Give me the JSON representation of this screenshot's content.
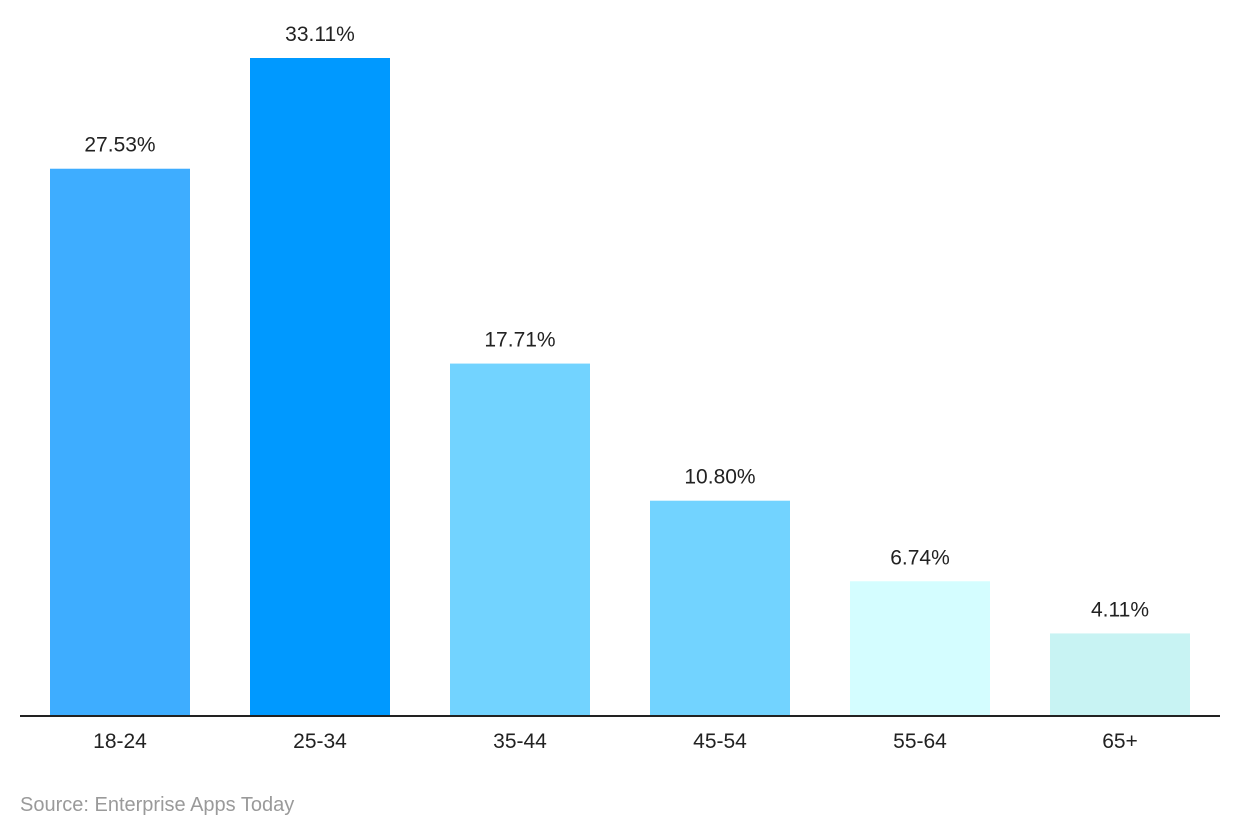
{
  "chart_data": {
    "type": "bar",
    "categories": [
      "18-24",
      "25-34",
      "35-44",
      "45-54",
      "55-64",
      "65+"
    ],
    "values": [
      27.53,
      33.11,
      17.71,
      10.8,
      6.74,
      4.11
    ],
    "value_labels": [
      "27.53%",
      "33.11%",
      "17.71%",
      "10.80%",
      "6.74%",
      "4.11%"
    ],
    "bar_colors": [
      "#3eadff",
      "#0099ff",
      "#72d3ff",
      "#72d3ff",
      "#d4fdff",
      "#c8f3f3"
    ],
    "title": "",
    "xlabel": "",
    "ylabel": "",
    "ylim": [
      0,
      33.11
    ],
    "grid": false,
    "legend": "none"
  },
  "source": "Source: Enterprise Apps Today",
  "colors": {
    "axis": "#222222",
    "label": "#222222",
    "source": "#9a9a9a"
  }
}
